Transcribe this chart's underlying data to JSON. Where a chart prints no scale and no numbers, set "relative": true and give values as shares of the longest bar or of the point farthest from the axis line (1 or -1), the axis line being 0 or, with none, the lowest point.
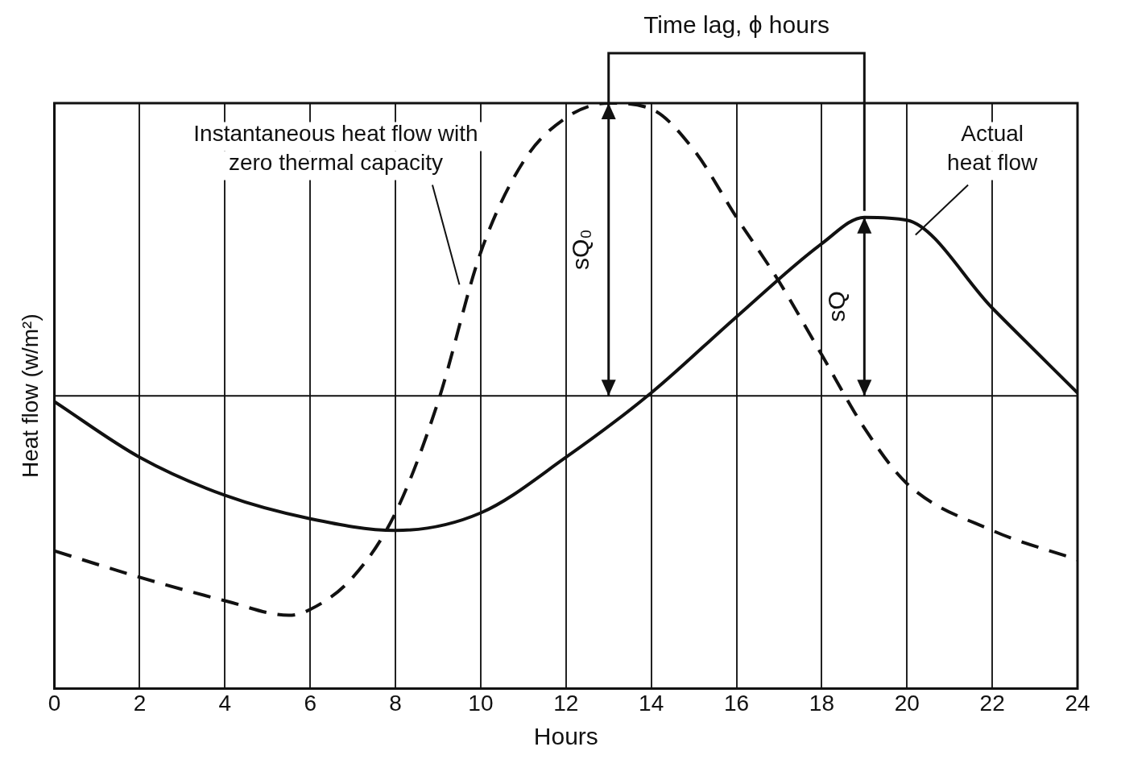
{
  "chart_data": {
    "type": "line",
    "relative": true,
    "xlabel": "Hours",
    "ylabel": "Heat flow (w/m²)",
    "xlim": [
      0,
      24
    ],
    "xticks": [
      0,
      2,
      4,
      6,
      8,
      10,
      12,
      14,
      16,
      18,
      20,
      22,
      24
    ],
    "grid": "x",
    "legend": false,
    "marker": "none",
    "annotations": [
      "Time lag, ϕ hours",
      "sQ₀",
      "sQ"
    ],
    "series": [
      {
        "name": "Instantaneous heat flow with zero thermal capacity",
        "color": "#111111",
        "line_style": "dashed",
        "x": [
          0,
          2,
          4,
          5.5,
          6,
          7,
          8,
          9,
          10,
          11,
          12,
          13,
          14,
          15,
          16,
          17,
          18,
          19,
          20,
          22,
          24
        ],
        "values": [
          -0.53,
          -0.62,
          -0.7,
          -0.75,
          -0.73,
          -0.62,
          -0.4,
          -0.02,
          0.49,
          0.8,
          0.95,
          1,
          0.98,
          0.84,
          0.61,
          0.39,
          0.14,
          -0.11,
          -0.3,
          -0.46,
          -0.56
        ]
      },
      {
        "name": "Actual heat flow",
        "color": "#111111",
        "line_style": "solid",
        "x": [
          0,
          2,
          4,
          6,
          8,
          10,
          12,
          14,
          16,
          18,
          19,
          20,
          22,
          24
        ],
        "values": [
          -0.02,
          -0.21,
          -0.34,
          -0.42,
          -0.46,
          -0.4,
          -0.21,
          0.01,
          0.27,
          0.52,
          0.61,
          0.6,
          0.3,
          0.01
        ]
      }
    ]
  }
}
